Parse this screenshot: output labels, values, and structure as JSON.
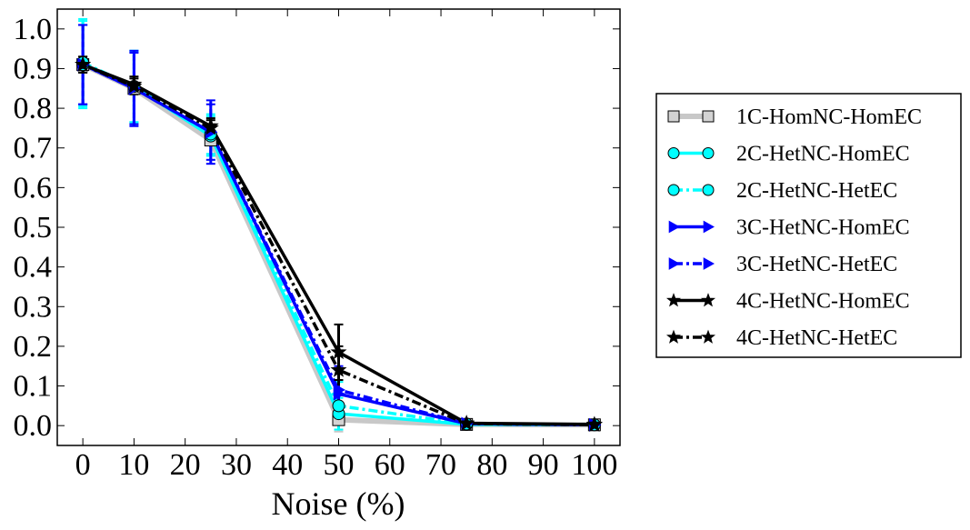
{
  "chart_data": {
    "type": "line",
    "title": "",
    "xlabel": "Noise (%)",
    "ylabel": "",
    "xlim": [
      -5,
      105
    ],
    "ylim": [
      -0.05,
      1.05
    ],
    "xticks": [
      0,
      10,
      20,
      30,
      40,
      50,
      60,
      70,
      80,
      90,
      100
    ],
    "yticks": [
      0.0,
      0.1,
      0.2,
      0.3,
      0.4,
      0.5,
      0.6,
      0.7,
      0.8,
      0.9,
      1.0
    ],
    "xtick_labels": [
      "0",
      "10",
      "20",
      "30",
      "40",
      "50",
      "60",
      "70",
      "80",
      "90",
      "100"
    ],
    "ytick_labels": [
      "0.0",
      "0.1",
      "0.2",
      "0.3",
      "0.4",
      "0.5",
      "0.6",
      "0.7",
      "0.8",
      "0.9",
      "1.0"
    ],
    "x": [
      0,
      10,
      25,
      50,
      75,
      100
    ],
    "legend_position": "right, outside plot",
    "series": [
      {
        "name": "1C-HomNC-HomEC",
        "color": "#c8c8c8",
        "marker_color": "#d3d3d3",
        "marker": "square",
        "linestyle": "solid",
        "values": [
          0.91,
          0.85,
          0.72,
          0.015,
          0.003,
          0.002
        ],
        "errors": [
          0.1,
          0.09,
          0.05,
          0.03,
          0.0,
          0.0
        ]
      },
      {
        "name": "2C-HetNC-HomEC",
        "color": "#00ffff",
        "marker_color": "#00ffff",
        "marker": "circle",
        "linestyle": "solid",
        "values": [
          0.91,
          0.855,
          0.73,
          0.03,
          0.003,
          0.002
        ],
        "errors": [
          0.11,
          0.09,
          0.05,
          0.04,
          0.0,
          0.0
        ]
      },
      {
        "name": "2C-HetNC-HetEC",
        "color": "#00ffff",
        "marker_color": "#00ffff",
        "marker": "circle",
        "linestyle": "dashdot",
        "values": [
          0.915,
          0.855,
          0.735,
          0.05,
          0.004,
          0.002
        ],
        "errors": [
          0.11,
          0.09,
          0.05,
          0.06,
          0.0,
          0.0
        ]
      },
      {
        "name": "3C-HetNC-HomEC",
        "color": "#0000ff",
        "marker_color": "#0000ff",
        "marker": "triangle-right",
        "linestyle": "solid",
        "values": [
          0.91,
          0.85,
          0.74,
          0.08,
          0.005,
          0.002
        ],
        "errors": [
          0.1,
          0.09,
          0.07,
          0.06,
          0.0,
          0.0
        ]
      },
      {
        "name": "3C-HetNC-HetEC",
        "color": "#0000ff",
        "marker_color": "#0000ff",
        "marker": "triangle-right",
        "linestyle": "dashdot",
        "values": [
          0.91,
          0.85,
          0.74,
          0.09,
          0.005,
          0.002
        ],
        "errors": [
          0.1,
          0.095,
          0.08,
          0.06,
          0.0,
          0.0
        ]
      },
      {
        "name": "4C-HetNC-HomEC",
        "color": "#000000",
        "marker_color": "#000000",
        "marker": "star",
        "linestyle": "solid",
        "values": [
          0.91,
          0.86,
          0.755,
          0.185,
          0.006,
          0.003
        ],
        "errors": [
          0.02,
          0.02,
          0.02,
          0.07,
          0.0,
          0.0
        ]
      },
      {
        "name": "4C-HetNC-HetEC",
        "color": "#000000",
        "marker_color": "#000000",
        "marker": "star",
        "linestyle": "dashdot",
        "values": [
          0.91,
          0.855,
          0.75,
          0.14,
          0.005,
          0.002
        ],
        "errors": [
          0.02,
          0.02,
          0.02,
          0.06,
          0.0,
          0.0
        ]
      }
    ]
  }
}
